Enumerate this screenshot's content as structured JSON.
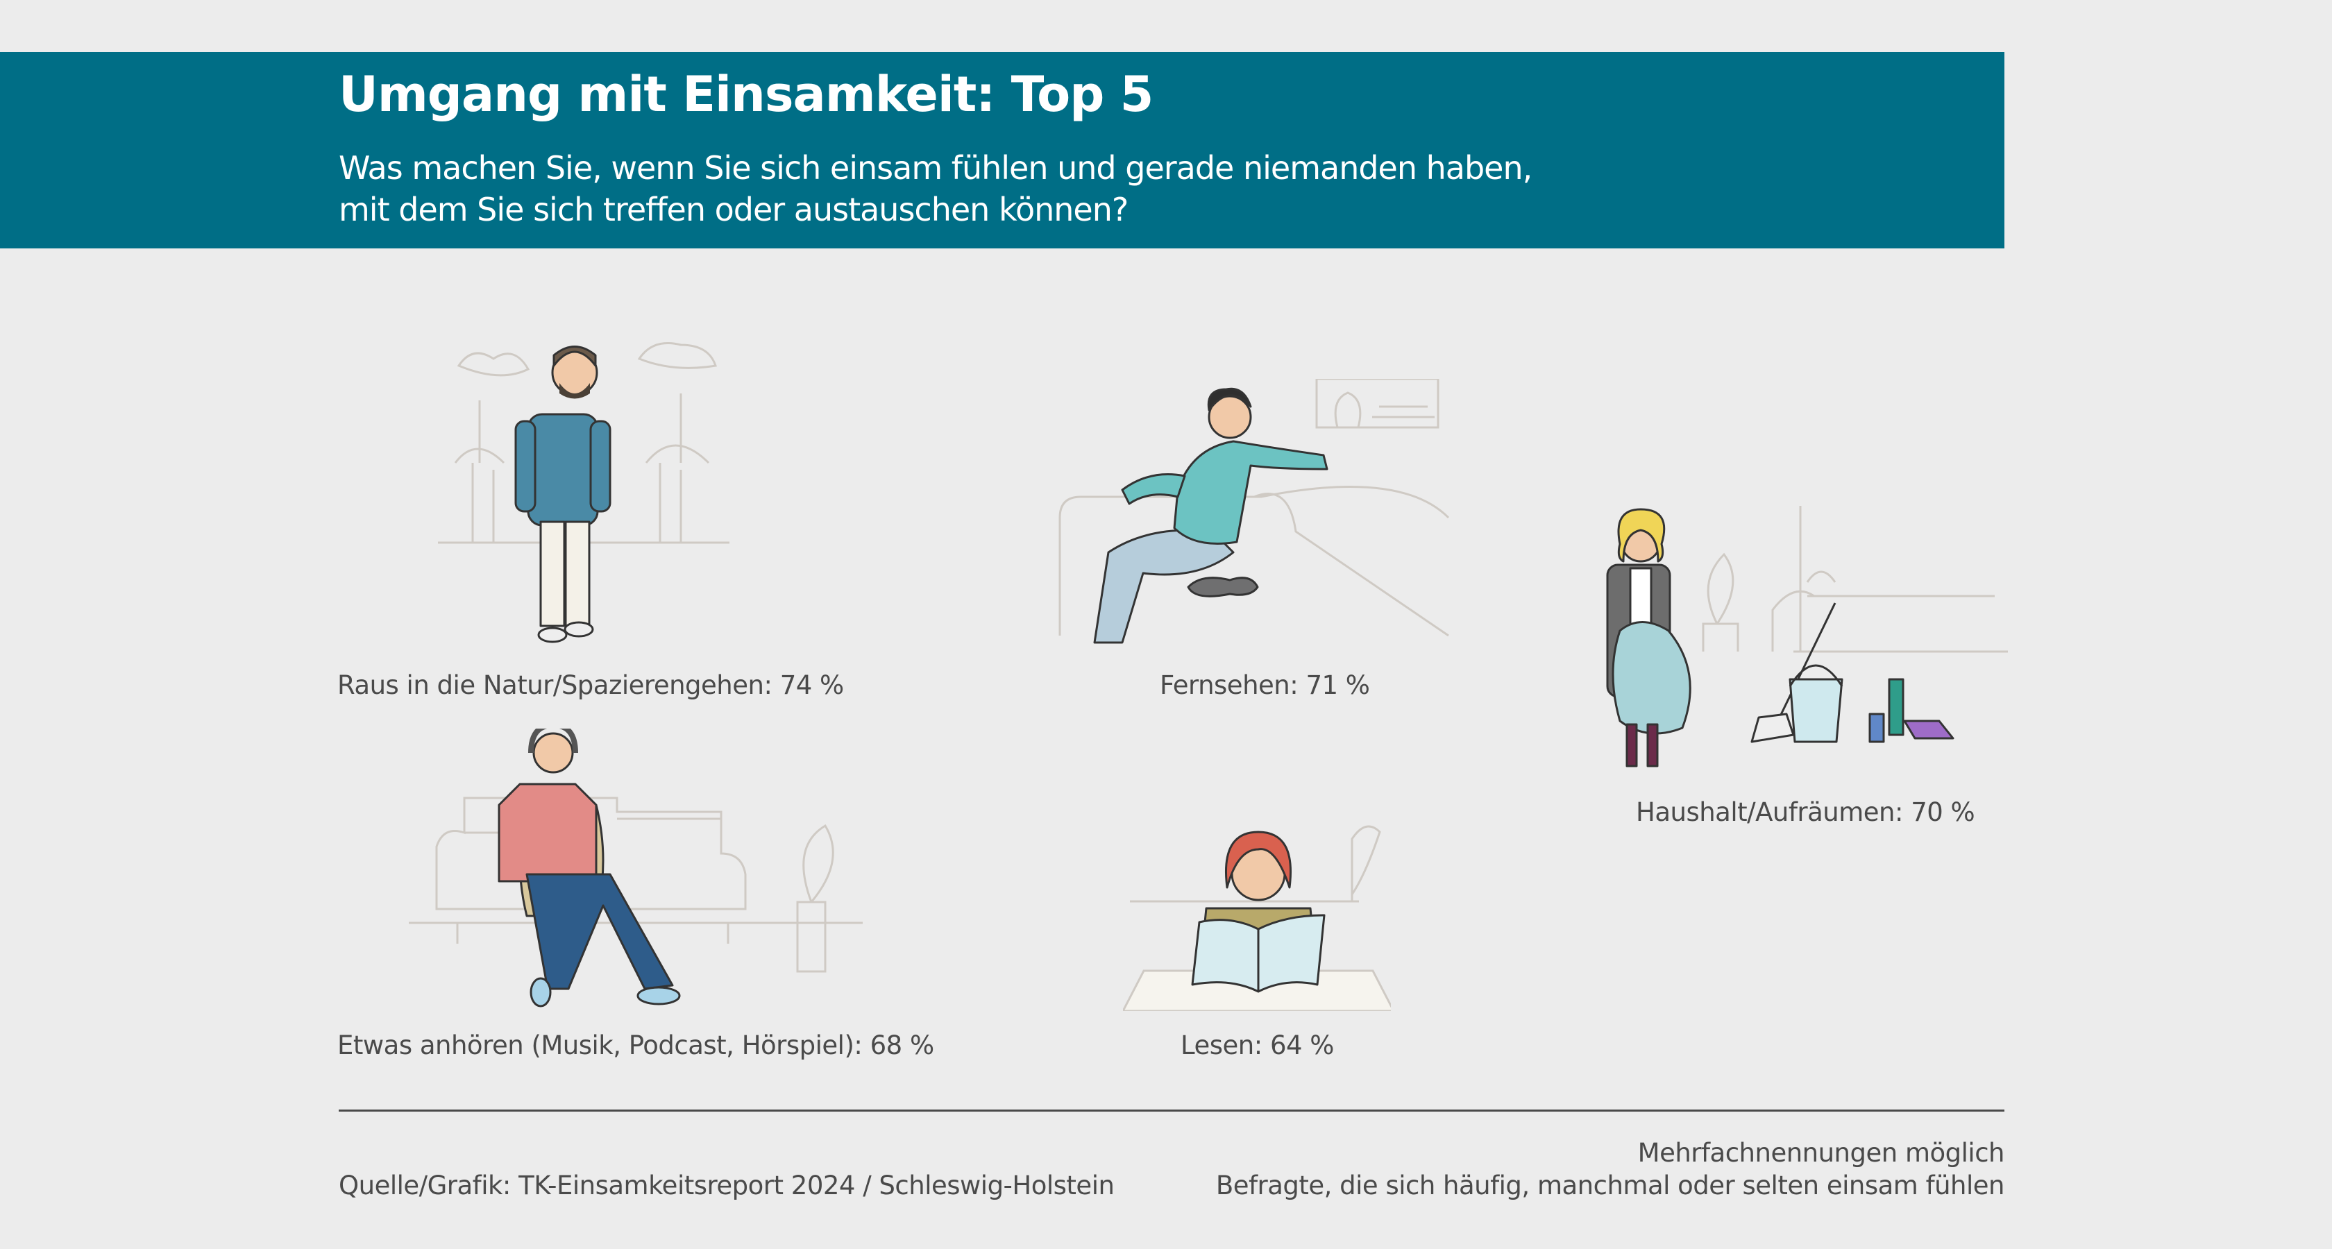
{
  "header": {
    "title": "Umgang mit Einsamkeit: Top 5",
    "subtitle_line1": "Was machen Sie, wenn Sie sich einsam fühlen und gerade niemanden haben,",
    "subtitle_line2": "mit dem Sie sich treffen oder austauschen können?",
    "background_color": "#006e86"
  },
  "items": [
    {
      "label": "Raus in die Natur/Spazierengehen: 74 %",
      "icon": "man-walking-in-park-illustration"
    },
    {
      "label": "Fernsehen: 71 %",
      "icon": "man-on-sofa-with-cat-illustration"
    },
    {
      "label": "Haushalt/Aufräumen: 70 %",
      "icon": "woman-cleaning-illustration"
    },
    {
      "label": "Etwas anhören (Musik, Podcast, Hörspiel): 68 %",
      "icon": "man-with-headphones-on-sofa-illustration"
    },
    {
      "label": "Lesen: 64 %",
      "icon": "woman-reading-book-illustration"
    }
  ],
  "footer": {
    "source": "Quelle/Grafik: TK-Einsamkeitsreport 2024 / Schleswig-Holstein",
    "note1": "Mehrfachnennungen möglich",
    "note2": "Befragte, die sich häufig, manchmal oder selten einsam fühlen"
  }
}
